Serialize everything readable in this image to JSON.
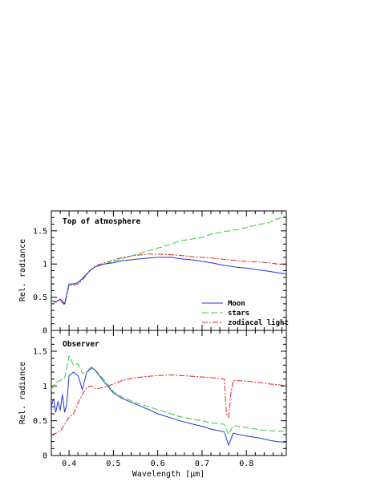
{
  "chart_data": [
    {
      "type": "line",
      "panel_label": "Top of atmosphere",
      "xlabel": "",
      "ylabel": "Rel. radiance",
      "xlim": [
        0.36,
        0.89
      ],
      "ylim": [
        0,
        1.8
      ],
      "xticks": [
        0.4,
        0.5,
        0.6,
        0.7,
        0.8
      ],
      "xtick_labels": [
        "",
        "",
        "",
        "",
        ""
      ],
      "yticks": [
        0,
        0.5,
        1,
        1.5
      ],
      "ytick_labels": [
        "0",
        "0.5",
        "1",
        "1.5"
      ],
      "legend": "bottom-right",
      "series": [
        {
          "name": "Moon",
          "color": "#2233dd",
          "dash": "solid",
          "x": [
            0.36,
            0.37,
            0.38,
            0.39,
            0.4,
            0.41,
            0.42,
            0.43,
            0.44,
            0.45,
            0.46,
            0.48,
            0.5,
            0.52,
            0.55,
            0.58,
            0.6,
            0.63,
            0.65,
            0.68,
            0.7,
            0.72,
            0.75,
            0.78,
            0.8,
            0.83,
            0.85,
            0.87,
            0.89
          ],
          "y": [
            0.45,
            0.43,
            0.47,
            0.4,
            0.7,
            0.7,
            0.72,
            0.78,
            0.85,
            0.92,
            0.96,
            1.0,
            1.02,
            1.05,
            1.07,
            1.09,
            1.1,
            1.1,
            1.08,
            1.06,
            1.04,
            1.02,
            0.98,
            0.95,
            0.94,
            0.91,
            0.89,
            0.87,
            0.85
          ]
        },
        {
          "name": "stars",
          "color": "#33cc33",
          "dash": "8,3",
          "x": [
            0.36,
            0.37,
            0.38,
            0.39,
            0.4,
            0.41,
            0.42,
            0.43,
            0.44,
            0.45,
            0.46,
            0.48,
            0.5,
            0.52,
            0.55,
            0.58,
            0.6,
            0.63,
            0.65,
            0.68,
            0.7,
            0.72,
            0.75,
            0.78,
            0.8,
            0.83,
            0.85,
            0.87,
            0.89
          ],
          "y": [
            0.45,
            0.43,
            0.47,
            0.4,
            0.7,
            0.7,
            0.72,
            0.78,
            0.85,
            0.92,
            0.96,
            1.0,
            1.04,
            1.08,
            1.14,
            1.2,
            1.24,
            1.3,
            1.35,
            1.38,
            1.4,
            1.45,
            1.49,
            1.52,
            1.55,
            1.6,
            1.62,
            1.68,
            1.72
          ]
        },
        {
          "name": "zodiacal light",
          "color": "#dd2222",
          "dash": "7,2,2,2",
          "x": [
            0.36,
            0.37,
            0.38,
            0.39,
            0.4,
            0.41,
            0.42,
            0.43,
            0.44,
            0.45,
            0.46,
            0.48,
            0.5,
            0.52,
            0.55,
            0.58,
            0.6,
            0.63,
            0.65,
            0.68,
            0.7,
            0.72,
            0.75,
            0.78,
            0.8,
            0.83,
            0.85,
            0.87,
            0.89
          ],
          "y": [
            0.45,
            0.42,
            0.46,
            0.38,
            0.68,
            0.68,
            0.7,
            0.76,
            0.84,
            0.92,
            0.97,
            1.02,
            1.06,
            1.1,
            1.13,
            1.15,
            1.15,
            1.14,
            1.13,
            1.11,
            1.1,
            1.09,
            1.07,
            1.05,
            1.04,
            1.03,
            1.02,
            1.0,
            0.99
          ]
        }
      ]
    },
    {
      "type": "line",
      "panel_label": "Observer",
      "xlabel": "Wavelength [µm]",
      "ylabel": "Rel. radiance",
      "xlim": [
        0.36,
        0.89
      ],
      "ylim": [
        0,
        1.8
      ],
      "xticks": [
        0.4,
        0.5,
        0.6,
        0.7,
        0.8
      ],
      "xtick_labels": [
        "0.4",
        "0.5",
        "0.6",
        "0.7",
        "0.8"
      ],
      "yticks": [
        0,
        0.5,
        1,
        1.5
      ],
      "ytick_labels": [
        "0",
        "0.5",
        "1",
        "1.5"
      ],
      "series": [
        {
          "name": "Moon",
          "color": "#2233dd",
          "dash": "solid",
          "x": [
            0.36,
            0.365,
            0.37,
            0.375,
            0.38,
            0.385,
            0.39,
            0.395,
            0.4,
            0.41,
            0.42,
            0.43,
            0.44,
            0.45,
            0.46,
            0.48,
            0.5,
            0.52,
            0.55,
            0.58,
            0.6,
            0.63,
            0.65,
            0.68,
            0.7,
            0.72,
            0.75,
            0.76,
            0.77,
            0.8,
            0.83,
            0.85,
            0.87,
            0.89
          ],
          "y": [
            0.7,
            0.82,
            0.62,
            0.78,
            0.65,
            0.88,
            0.62,
            0.75,
            1.15,
            1.2,
            1.15,
            0.95,
            1.2,
            1.27,
            1.22,
            1.05,
            0.9,
            0.82,
            0.74,
            0.66,
            0.6,
            0.54,
            0.5,
            0.45,
            0.42,
            0.38,
            0.34,
            0.15,
            0.32,
            0.28,
            0.25,
            0.22,
            0.2,
            0.19
          ]
        },
        {
          "name": "stars",
          "color": "#33cc33",
          "dash": "8,3",
          "x": [
            0.36,
            0.37,
            0.38,
            0.39,
            0.4,
            0.41,
            0.42,
            0.43,
            0.44,
            0.45,
            0.46,
            0.48,
            0.5,
            0.52,
            0.55,
            0.58,
            0.6,
            0.63,
            0.65,
            0.68,
            0.7,
            0.72,
            0.75,
            0.76,
            0.77,
            0.8,
            0.83,
            0.85,
            0.87,
            0.89
          ],
          "y": [
            0.95,
            1.05,
            1.08,
            1.12,
            1.43,
            1.3,
            1.32,
            1.18,
            1.2,
            1.25,
            1.22,
            1.08,
            0.92,
            0.84,
            0.76,
            0.7,
            0.66,
            0.6,
            0.56,
            0.52,
            0.5,
            0.47,
            0.45,
            0.3,
            0.43,
            0.4,
            0.37,
            0.36,
            0.35,
            0.35
          ]
        },
        {
          "name": "zodiacal light",
          "color": "#dd2222",
          "dash": "7,2,2,2",
          "x": [
            0.36,
            0.37,
            0.38,
            0.39,
            0.4,
            0.41,
            0.42,
            0.43,
            0.44,
            0.45,
            0.46,
            0.48,
            0.5,
            0.52,
            0.55,
            0.58,
            0.6,
            0.63,
            0.65,
            0.68,
            0.7,
            0.72,
            0.75,
            0.755,
            0.76,
            0.765,
            0.77,
            0.8,
            0.83,
            0.85,
            0.87,
            0.89
          ],
          "y": [
            0.3,
            0.32,
            0.35,
            0.45,
            0.55,
            0.6,
            0.75,
            0.88,
            0.98,
            1.0,
            0.96,
            0.98,
            1.03,
            1.08,
            1.12,
            1.14,
            1.15,
            1.16,
            1.15,
            1.14,
            1.13,
            1.12,
            1.1,
            0.6,
            0.55,
            0.9,
            1.08,
            1.07,
            1.05,
            1.03,
            1.02,
            1.0
          ]
        }
      ]
    }
  ]
}
